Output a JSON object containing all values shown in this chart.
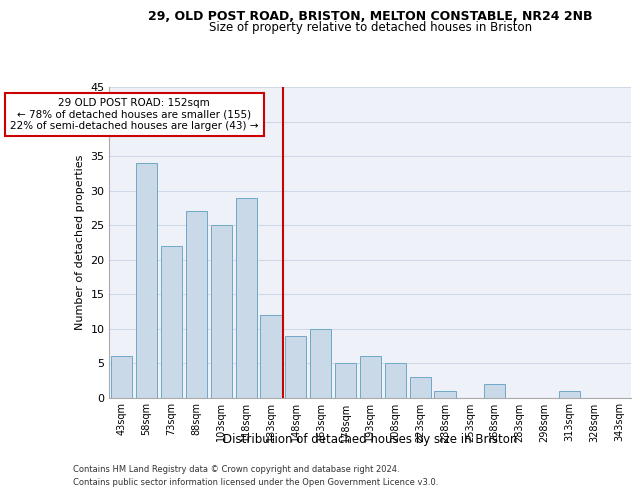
{
  "title_line1": "29, OLD POST ROAD, BRISTON, MELTON CONSTABLE, NR24 2NB",
  "title_line2": "Size of property relative to detached houses in Briston",
  "xlabel": "Distribution of detached houses by size in Briston",
  "ylabel": "Number of detached properties",
  "categories": [
    "43sqm",
    "58sqm",
    "73sqm",
    "88sqm",
    "103sqm",
    "118sqm",
    "133sqm",
    "148sqm",
    "163sqm",
    "178sqm",
    "193sqm",
    "208sqm",
    "223sqm",
    "238sqm",
    "253sqm",
    "268sqm",
    "283sqm",
    "298sqm",
    "313sqm",
    "328sqm",
    "343sqm"
  ],
  "values": [
    6,
    34,
    22,
    27,
    25,
    29,
    12,
    9,
    10,
    5,
    6,
    5,
    3,
    1,
    0,
    2,
    0,
    0,
    1,
    0,
    0
  ],
  "bar_color": "#c9d9e8",
  "bar_edge_color": "#6fa8c8",
  "vline_index": 7,
  "vline_color": "#cc0000",
  "annotation_line1": "29 OLD POST ROAD: 152sqm",
  "annotation_line2": "← 78% of detached houses are smaller (155)",
  "annotation_line3": "22% of semi-detached houses are larger (43) →",
  "annotation_box_color": "#ffffff",
  "annotation_box_edge": "#cc0000",
  "ylim": [
    0,
    45
  ],
  "yticks": [
    0,
    5,
    10,
    15,
    20,
    25,
    30,
    35,
    40,
    45
  ],
  "grid_color": "#d0d8e8",
  "background_color": "#eef2f8",
  "footer_line1": "Contains HM Land Registry data © Crown copyright and database right 2024.",
  "footer_line2": "Contains public sector information licensed under the Open Government Licence v3.0."
}
